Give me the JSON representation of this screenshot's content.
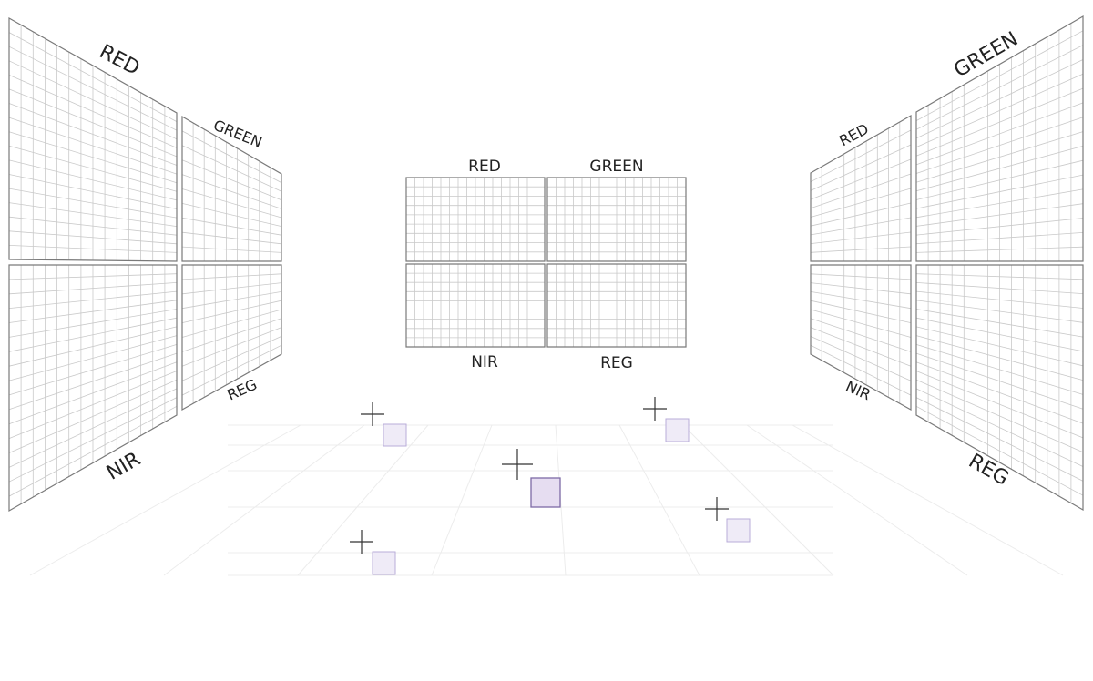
{
  "colors": {
    "background": "#ffffff",
    "panel_frame": "#7a7a7a",
    "panel_grid": "#c9c9c9",
    "floor_grid": "#ececec",
    "text": "#222222",
    "crosshair": "#333333",
    "marker_fill": "#efebf7",
    "marker_stroke": "#b9acd9",
    "marker_fill_active": "#e6ddf1",
    "marker_stroke_active": "#7d6aa6"
  },
  "left_array": {
    "labels": {
      "top_outer": "RED",
      "top_inner": "GREEN",
      "bottom_outer": "NIR",
      "bottom_inner": "REG"
    }
  },
  "center_array": {
    "labels": {
      "top_left": "RED",
      "top_right": "GREEN",
      "bottom_left": "NIR",
      "bottom_right": "REG"
    }
  },
  "right_array": {
    "labels": {
      "top_inner": "RED",
      "top_outer": "GREEN",
      "bottom_inner": "NIR",
      "bottom_outer": "REG"
    }
  },
  "floor": {
    "markers": [
      {
        "id": "marker-back-left",
        "active": false
      },
      {
        "id": "marker-back-right",
        "active": false
      },
      {
        "id": "marker-center",
        "active": true
      },
      {
        "id": "marker-right",
        "active": false
      },
      {
        "id": "marker-front-left",
        "active": false
      }
    ]
  }
}
